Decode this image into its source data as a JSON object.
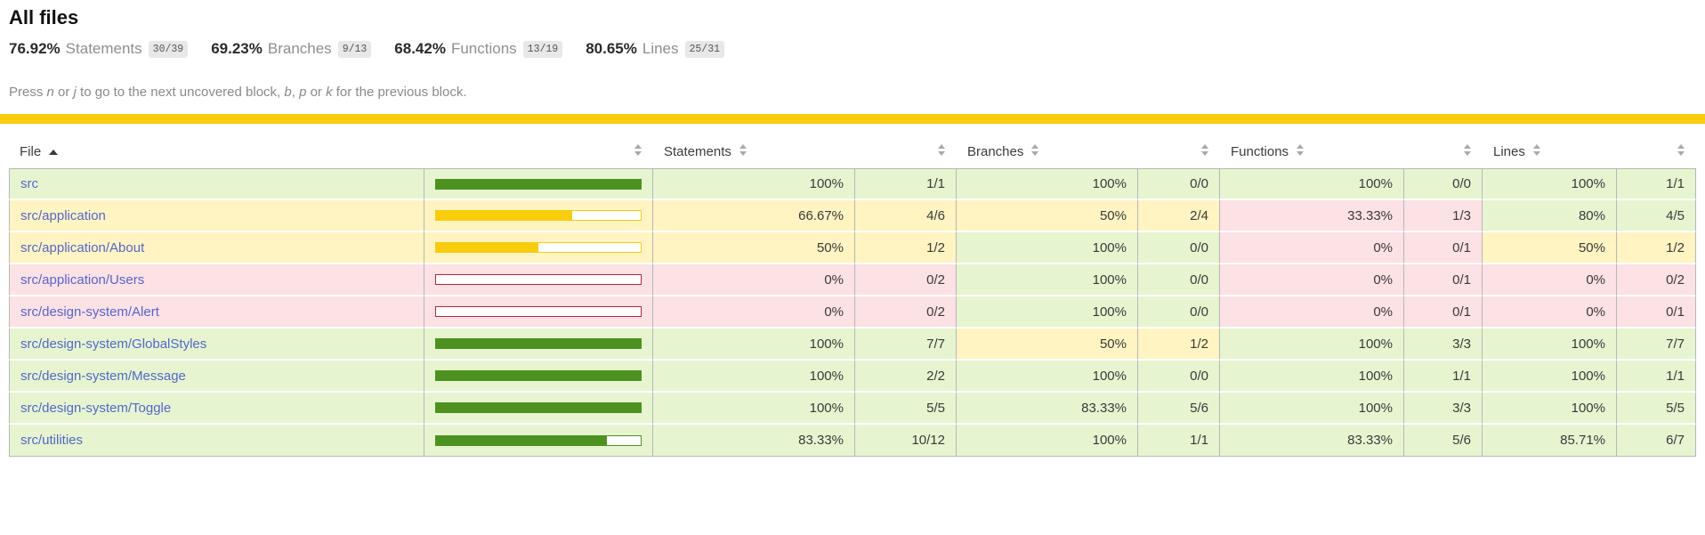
{
  "title": "All files",
  "summary": [
    {
      "pct": "76.92%",
      "label": "Statements",
      "frac": "30/39"
    },
    {
      "pct": "69.23%",
      "label": "Branches",
      "frac": "9/13"
    },
    {
      "pct": "68.42%",
      "label": "Functions",
      "frac": "13/19"
    },
    {
      "pct": "80.65%",
      "label": "Lines",
      "frac": "25/31"
    }
  ],
  "hint": {
    "p1": "Press ",
    "k1": "n",
    "p2": " or ",
    "k2": "j",
    "p3": " to go to the next uncovered block, ",
    "k3": "b",
    "p4": ", ",
    "k4": "p",
    "p5": " or ",
    "k5": "k",
    "p6": " for the previous block."
  },
  "header": {
    "file": "File",
    "statements": "Statements",
    "branches": "Branches",
    "functions": "Functions",
    "lines": "Lines"
  },
  "colors": {
    "status_line": "#f9cd0b",
    "high_bg": "#e6f5d0",
    "medium_bg": "#fff4c2",
    "low_bg": "#fce1e5",
    "high_fill": "#4d9221",
    "medium_fill": "#f9cd0b",
    "low_fill": "#c21f39",
    "link": "#5566cc",
    "fraction_badge_bg": "#e8e8e8"
  },
  "rows": [
    {
      "file": "src",
      "level": "high",
      "bar_pct": 100,
      "statements": {
        "pct": "100%",
        "frac": "1/1",
        "level": "high"
      },
      "branches": {
        "pct": "100%",
        "frac": "0/0",
        "level": "high"
      },
      "functions": {
        "pct": "100%",
        "frac": "0/0",
        "level": "high"
      },
      "lines": {
        "pct": "100%",
        "frac": "1/1",
        "level": "high"
      }
    },
    {
      "file": "src/application",
      "level": "medium",
      "bar_pct": 66.67,
      "statements": {
        "pct": "66.67%",
        "frac": "4/6",
        "level": "medium"
      },
      "branches": {
        "pct": "50%",
        "frac": "2/4",
        "level": "medium"
      },
      "functions": {
        "pct": "33.33%",
        "frac": "1/3",
        "level": "low"
      },
      "lines": {
        "pct": "80%",
        "frac": "4/5",
        "level": "high"
      }
    },
    {
      "file": "src/application/About",
      "level": "medium",
      "bar_pct": 50,
      "statements": {
        "pct": "50%",
        "frac": "1/2",
        "level": "medium"
      },
      "branches": {
        "pct": "100%",
        "frac": "0/0",
        "level": "high"
      },
      "functions": {
        "pct": "0%",
        "frac": "0/1",
        "level": "low"
      },
      "lines": {
        "pct": "50%",
        "frac": "1/2",
        "level": "medium"
      }
    },
    {
      "file": "src/application/Users",
      "level": "low",
      "bar_pct": 0,
      "statements": {
        "pct": "0%",
        "frac": "0/2",
        "level": "low"
      },
      "branches": {
        "pct": "100%",
        "frac": "0/0",
        "level": "high"
      },
      "functions": {
        "pct": "0%",
        "frac": "0/1",
        "level": "low"
      },
      "lines": {
        "pct": "0%",
        "frac": "0/2",
        "level": "low"
      }
    },
    {
      "file": "src/design-system/Alert",
      "level": "low",
      "bar_pct": 0,
      "statements": {
        "pct": "0%",
        "frac": "0/2",
        "level": "low"
      },
      "branches": {
        "pct": "100%",
        "frac": "0/0",
        "level": "high"
      },
      "functions": {
        "pct": "0%",
        "frac": "0/1",
        "level": "low"
      },
      "lines": {
        "pct": "0%",
        "frac": "0/1",
        "level": "low"
      }
    },
    {
      "file": "src/design-system/GlobalStyles",
      "level": "high",
      "bar_pct": 100,
      "statements": {
        "pct": "100%",
        "frac": "7/7",
        "level": "high"
      },
      "branches": {
        "pct": "50%",
        "frac": "1/2",
        "level": "medium"
      },
      "functions": {
        "pct": "100%",
        "frac": "3/3",
        "level": "high"
      },
      "lines": {
        "pct": "100%",
        "frac": "7/7",
        "level": "high"
      }
    },
    {
      "file": "src/design-system/Message",
      "level": "high",
      "bar_pct": 100,
      "statements": {
        "pct": "100%",
        "frac": "2/2",
        "level": "high"
      },
      "branches": {
        "pct": "100%",
        "frac": "0/0",
        "level": "high"
      },
      "functions": {
        "pct": "100%",
        "frac": "1/1",
        "level": "high"
      },
      "lines": {
        "pct": "100%",
        "frac": "1/1",
        "level": "high"
      }
    },
    {
      "file": "src/design-system/Toggle",
      "level": "high",
      "bar_pct": 100,
      "statements": {
        "pct": "100%",
        "frac": "5/5",
        "level": "high"
      },
      "branches": {
        "pct": "83.33%",
        "frac": "5/6",
        "level": "high"
      },
      "functions": {
        "pct": "100%",
        "frac": "3/3",
        "level": "high"
      },
      "lines": {
        "pct": "100%",
        "frac": "5/5",
        "level": "high"
      }
    },
    {
      "file": "src/utilities",
      "level": "high",
      "bar_pct": 83.33,
      "statements": {
        "pct": "83.33%",
        "frac": "10/12",
        "level": "high"
      },
      "branches": {
        "pct": "100%",
        "frac": "1/1",
        "level": "high"
      },
      "functions": {
        "pct": "83.33%",
        "frac": "5/6",
        "level": "high"
      },
      "lines": {
        "pct": "85.71%",
        "frac": "6/7",
        "level": "high"
      }
    }
  ]
}
